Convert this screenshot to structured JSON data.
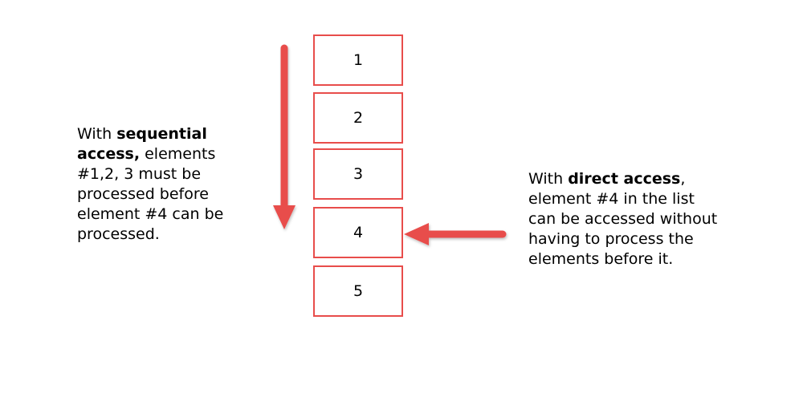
{
  "list_elements": [
    "1",
    "2",
    "3",
    "4",
    "5"
  ],
  "sequential_note": {
    "prefix": "With ",
    "bold": "sequential access,",
    "suffix": " elements #1,2, 3 must be processed before element #4 can be processed."
  },
  "direct_note": {
    "prefix": "With ",
    "bold": "direct access",
    "suffix": ", element #4 in the list can be accessed without having to process the elements before it."
  },
  "colors": {
    "box_border": "#e84d4b",
    "arrow": "#e84d4b"
  }
}
